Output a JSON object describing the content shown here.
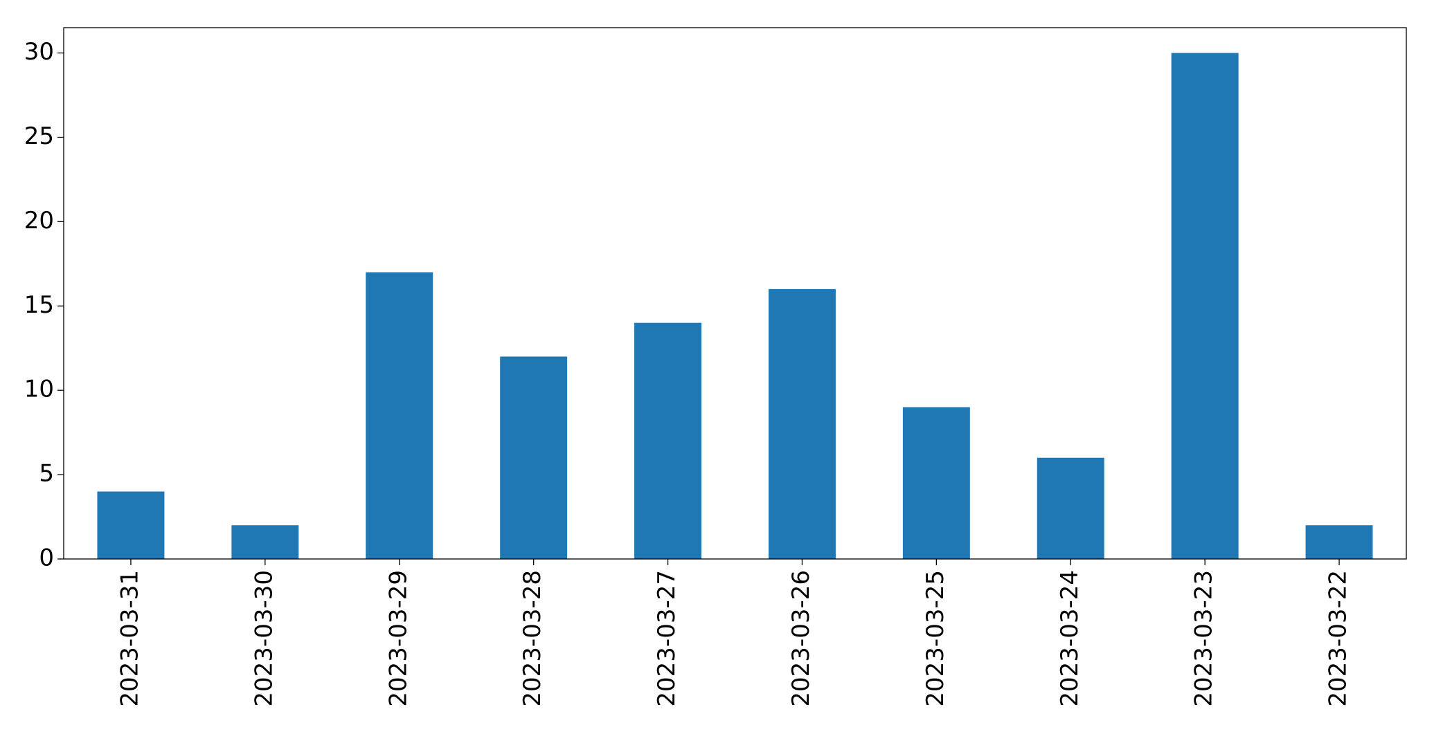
{
  "chart_data": {
    "type": "bar",
    "categories": [
      "2023-03-31",
      "2023-03-30",
      "2023-03-29",
      "2023-03-28",
      "2023-03-27",
      "2023-03-26",
      "2023-03-25",
      "2023-03-24",
      "2023-03-23",
      "2023-03-22"
    ],
    "values": [
      4,
      2,
      17,
      12,
      14,
      16,
      9,
      6,
      30,
      2
    ],
    "color": "#1f77b4",
    "ylim": [
      0,
      31.5
    ],
    "yticks": [
      0,
      5,
      10,
      15,
      20,
      25,
      30
    ],
    "grid": false
  }
}
